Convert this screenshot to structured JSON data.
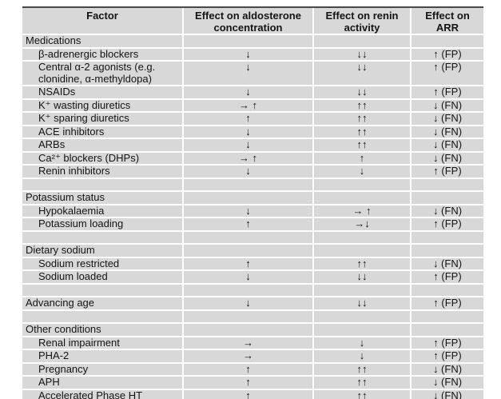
{
  "colors": {
    "row_bg": "#d8d8d8",
    "separator": "#ffffff",
    "top_border": "#474747",
    "text": "#141414"
  },
  "table": {
    "headers": [
      "Factor",
      "Effect on aldosterone\nconcentration",
      "Effect on renin\nactivity",
      "Effect on\nARR"
    ],
    "rows": [
      {
        "type": "section",
        "factor": "Medications",
        "aldosterone": "",
        "renin": "",
        "arr": ""
      },
      {
        "type": "item",
        "factor": "β-adrenergic blockers",
        "aldosterone": "↓",
        "renin": "↓↓",
        "arr": "↑ (FP)"
      },
      {
        "type": "item",
        "factor": "Central α-2 agonists (e.g.\nclonidine, α-methyldopa)",
        "aldosterone": "↓",
        "renin": "↓↓",
        "arr": "↑ (FP)"
      },
      {
        "type": "item",
        "factor": "NSAIDs",
        "aldosterone": "↓",
        "renin": "↓↓",
        "arr": "↑ (FP)"
      },
      {
        "type": "item",
        "factor": "K⁺ wasting diuretics",
        "aldosterone": "→ ↑",
        "renin": "↑↑",
        "arr": "↓ (FN)"
      },
      {
        "type": "item",
        "factor": "K⁺ sparing diuretics",
        "aldosterone": "↑",
        "renin": "↑↑",
        "arr": "↓ (FN)"
      },
      {
        "type": "item",
        "factor": "ACE inhibitors",
        "aldosterone": "↓",
        "renin": "↑↑",
        "arr": "↓ (FN)"
      },
      {
        "type": "item",
        "factor": "ARBs",
        "aldosterone": "↓",
        "renin": "↑↑",
        "arr": "↓ (FN)"
      },
      {
        "type": "item",
        "factor": "Ca²⁺ blockers (DHPs)",
        "aldosterone": "→ ↑",
        "renin": "↑",
        "arr": "↓ (FN)"
      },
      {
        "type": "item",
        "factor": "Renin inhibitors",
        "aldosterone": "↓",
        "renin": "↓",
        "arr": "↑ (FP)"
      },
      {
        "type": "spacer",
        "factor": "",
        "aldosterone": "",
        "renin": "",
        "arr": ""
      },
      {
        "type": "section",
        "factor": "Potassium status",
        "aldosterone": "",
        "renin": "",
        "arr": ""
      },
      {
        "type": "item",
        "factor": "Hypokalaemia",
        "aldosterone": "↓",
        "renin": "→ ↑",
        "arr": "↓ (FN)"
      },
      {
        "type": "item",
        "factor": "Potassium loading",
        "aldosterone": "↑",
        "renin": "→↓",
        "arr": "↑ (FP)"
      },
      {
        "type": "spacer",
        "factor": "",
        "aldosterone": "",
        "renin": "",
        "arr": ""
      },
      {
        "type": "section",
        "factor": "Dietary sodium",
        "aldosterone": "",
        "renin": "",
        "arr": ""
      },
      {
        "type": "item",
        "factor": "Sodium restricted",
        "aldosterone": "↑",
        "renin": "↑↑",
        "arr": "↓ (FN)"
      },
      {
        "type": "item",
        "factor": "Sodium loaded",
        "aldosterone": "↓",
        "renin": "↓↓",
        "arr": "↑ (FP)"
      },
      {
        "type": "spacer",
        "factor": "",
        "aldosterone": "",
        "renin": "",
        "arr": ""
      },
      {
        "type": "toplevel",
        "factor": "Advancing age",
        "aldosterone": "↓",
        "renin": "↓↓",
        "arr": "↑ (FP)"
      },
      {
        "type": "spacer",
        "factor": "",
        "aldosterone": "",
        "renin": "",
        "arr": ""
      },
      {
        "type": "section",
        "factor": "Other conditions",
        "aldosterone": "",
        "renin": "",
        "arr": ""
      },
      {
        "type": "item",
        "factor": "Renal impairment",
        "aldosterone": "→",
        "renin": "↓",
        "arr": "↑ (FP)"
      },
      {
        "type": "item",
        "factor": "PHA-2",
        "aldosterone": "→",
        "renin": "↓",
        "arr": "↑ (FP)"
      },
      {
        "type": "item",
        "factor": "Pregnancy",
        "aldosterone": "↑",
        "renin": "↑↑",
        "arr": "↓ (FN)"
      },
      {
        "type": "item",
        "factor": "APH",
        "aldosterone": "↑",
        "renin": "↑↑",
        "arr": "↓ (FN)"
      },
      {
        "type": "item",
        "factor": "Accelerated Phase HT",
        "aldosterone": "↑",
        "renin": "↑↑",
        "arr": "↓ (FN)"
      }
    ]
  }
}
